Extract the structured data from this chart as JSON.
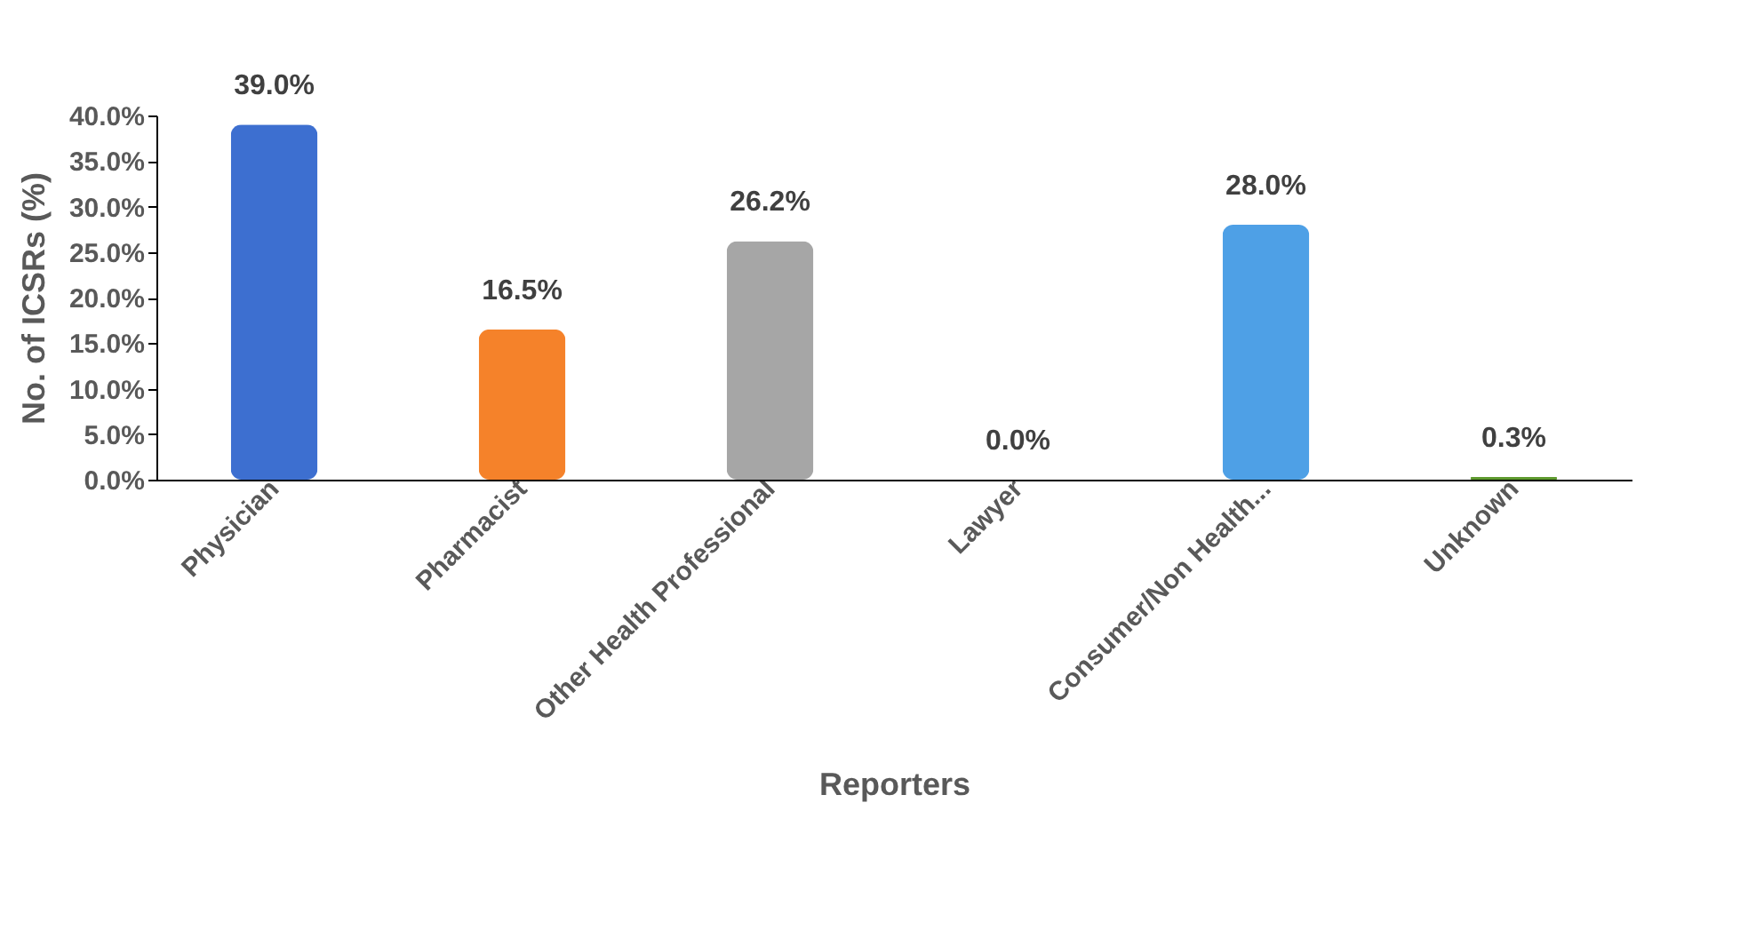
{
  "chart_data": {
    "type": "bar",
    "xlabel": "Reporters",
    "ylabel": "No. of ICSRs (%)",
    "categories": [
      "Physician",
      "Pharmacist",
      "Other Health Professional",
      "Lawyer",
      "Consumer/Non Health...",
      "Unknown"
    ],
    "values": [
      39.0,
      16.5,
      26.2,
      0.0,
      28.0,
      0.3
    ],
    "colors": [
      "#3d6fd0",
      "#f5822a",
      "#a6a6a6",
      "#c9a100",
      "#4ea0e6",
      "#5e9a2e"
    ],
    "value_labels": [
      "39.0%",
      "16.5%",
      "26.2%",
      "0.0%",
      "28.0%",
      "0.3%"
    ],
    "ylim": [
      0,
      40
    ],
    "yticks": [
      {
        "value": 0,
        "label": "0.0%"
      },
      {
        "value": 5,
        "label": "5.0%"
      },
      {
        "value": 10,
        "label": "10.0%"
      },
      {
        "value": 15,
        "label": "15.0%"
      },
      {
        "value": 20,
        "label": "20.0%"
      },
      {
        "value": 25,
        "label": "25.0%"
      },
      {
        "value": 30,
        "label": "30.0%"
      },
      {
        "value": 35,
        "label": "35.0%"
      },
      {
        "value": 40,
        "label": "40.0%"
      }
    ],
    "grid": false,
    "legend": false
  }
}
